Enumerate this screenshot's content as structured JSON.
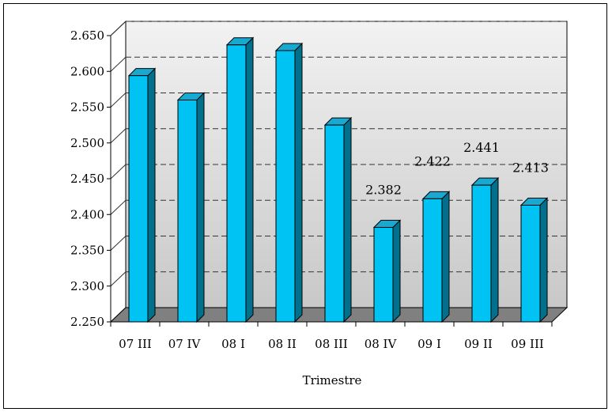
{
  "chart_data": {
    "type": "bar",
    "title": "",
    "xlabel": "Trimestre",
    "ylabel": "",
    "ylim": [
      2250,
      2650
    ],
    "yticks": [
      2250,
      2300,
      2350,
      2400,
      2450,
      2500,
      2550,
      2600,
      2650
    ],
    "ytick_labels": [
      "2.250",
      "2.300",
      "2.350",
      "2.400",
      "2.450",
      "2.500",
      "2.550",
      "2.600",
      "2.650"
    ],
    "categories": [
      "07 III",
      "07 IV",
      "08 I",
      "08 II",
      "08 III",
      "08 IV",
      "09 I",
      "09 II",
      "09 III"
    ],
    "values": [
      2594,
      2560,
      2637,
      2629,
      2525,
      2382,
      2422,
      2441,
      2413
    ],
    "data_labels": [
      "",
      "",
      "",
      "",
      "",
      "2.382",
      "2.422",
      "2.441",
      "2.413"
    ],
    "grid": true,
    "style": "3d-column",
    "colors": {
      "bar_front": "#00c3f3",
      "bar_side": "#00708c",
      "bar_top": "#19a8d0",
      "floor": "#808080",
      "wall_top": "#f2f2f2",
      "wall_bottom": "#c8c8c8",
      "grid": "#333333"
    }
  }
}
